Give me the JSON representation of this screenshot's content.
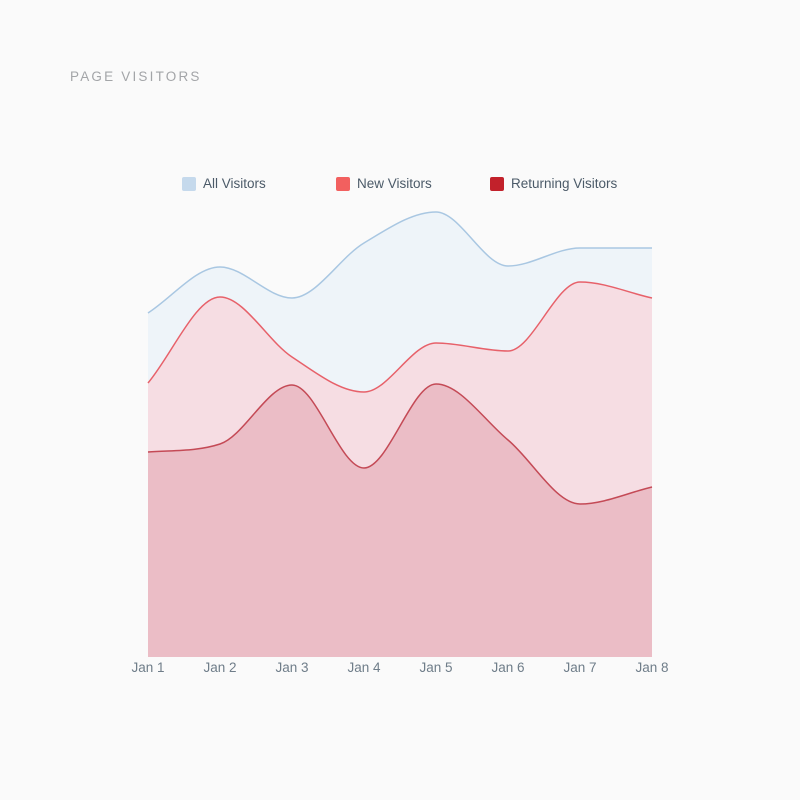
{
  "chart_data": {
    "type": "area",
    "title": "PAGE VISITORS",
    "categories": [
      "Jan 1",
      "Jan 2",
      "Jan 3",
      "Jan 4",
      "Jan 5",
      "Jan 6",
      "Jan 7",
      "Jan 8"
    ],
    "series": [
      {
        "name": "All Visitors",
        "values": [
          344,
          390,
          359,
          414,
          445,
          391,
          409,
          409
        ],
        "fill_color": "#eef4f9",
        "line_color": "#a9c7e2",
        "legend_swatch_color": "#c5d9ec"
      },
      {
        "name": "New Visitors",
        "values": [
          274,
          360,
          300,
          265,
          314,
          306,
          375,
          359
        ],
        "fill_color": "#f6dde3",
        "line_color": "#e7616a",
        "legend_swatch_color": "#f2605f"
      },
      {
        "name": "Returning Visitors",
        "values": [
          205,
          213,
          272,
          189,
          273,
          217,
          153,
          170
        ],
        "fill_color": "#ebbdc6",
        "line_color": "#c44a56",
        "legend_swatch_color": "#c2212b"
      }
    ],
    "xlabel": "",
    "ylabel": "",
    "ylim": [
      0,
      460
    ],
    "grid": false,
    "stacked": false,
    "legend_position": "top",
    "background_color": "#fafafa",
    "axis_label_color": "#6f7d89",
    "legend_text_color": "#4b5a68",
    "title_color": "#a3a5a8"
  }
}
